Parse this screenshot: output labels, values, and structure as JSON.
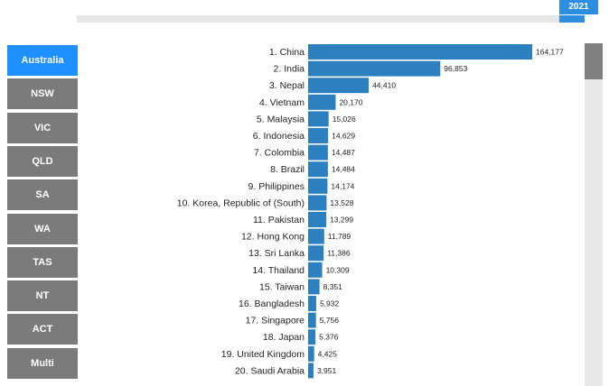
{
  "year_label": "2021",
  "regions": [
    {
      "label": "Australia",
      "active": true
    },
    {
      "label": "NSW",
      "active": false
    },
    {
      "label": "VIC",
      "active": false
    },
    {
      "label": "QLD",
      "active": false
    },
    {
      "label": "SA",
      "active": false
    },
    {
      "label": "WA",
      "active": false
    },
    {
      "label": "TAS",
      "active": false
    },
    {
      "label": "NT",
      "active": false
    },
    {
      "label": "ACT",
      "active": false
    },
    {
      "label": "Multi",
      "active": false
    }
  ],
  "colors": {
    "bar": "#2c80c0",
    "active": "#1e90ff",
    "inactive": "#7b7b7b"
  },
  "chart_data": {
    "type": "bar",
    "orientation": "horizontal",
    "categories": [
      "1. China",
      "2. India",
      "3. Nepal",
      "4. Vietnam",
      "5. Malaysia",
      "6. Indonesia",
      "7. Colombia",
      "8. Brazil",
      "9. Philippines",
      "10. Korea, Republic of (South)",
      "11. Pakistan",
      "12. Hong Kong",
      "13. Sri Lanka",
      "14. Thailand",
      "15. Taiwan",
      "16. Bangladesh",
      "17. Singapore",
      "18. Japan",
      "19. United Kingdom",
      "20. Saudi Arabia"
    ],
    "values": [
      164177,
      96853,
      44410,
      20170,
      15026,
      14629,
      14487,
      14484,
      14174,
      13528,
      13299,
      11789,
      11386,
      10309,
      8351,
      5932,
      5756,
      5376,
      4425,
      3951
    ],
    "value_labels": [
      "164,177",
      "96,853",
      "44,410",
      "20,170",
      "15,026",
      "14,629",
      "14,487",
      "14,484",
      "14,174",
      "13,528",
      "13,299",
      "11,789",
      "11,386",
      "10,309",
      "8,351",
      "5,932",
      "5,756",
      "5,376",
      "4,425",
      "3,951"
    ],
    "title": "",
    "xlabel": "",
    "ylabel": ""
  }
}
